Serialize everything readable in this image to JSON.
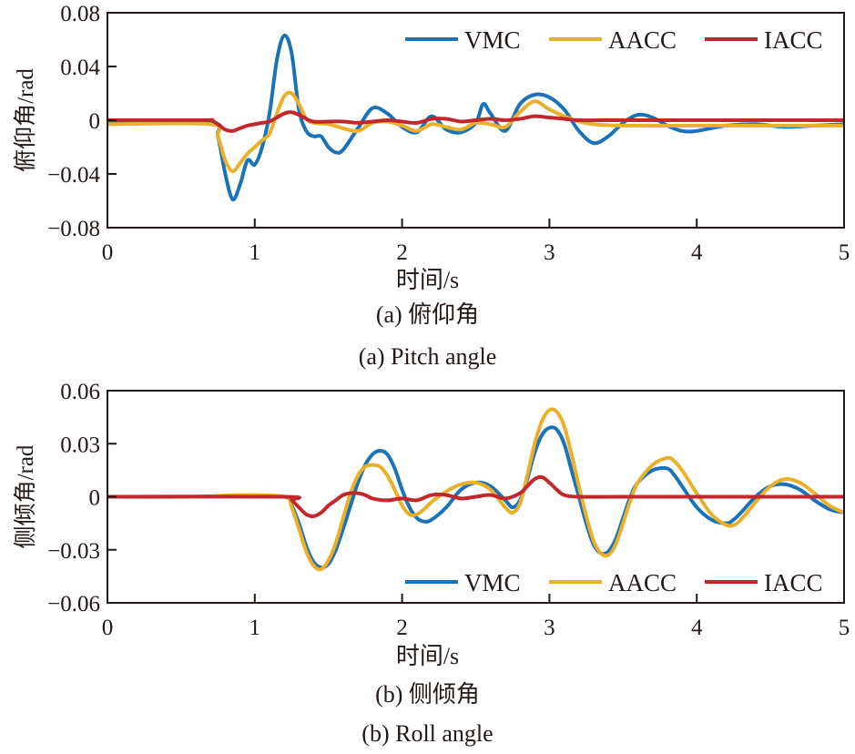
{
  "chart_data": [
    {
      "id": "pitch",
      "type": "line",
      "xlabel": "时间/s",
      "ylabel": "俯仰角/rad",
      "caption_cn": "(a) 俯仰角",
      "caption_en": "(a) Pitch angle",
      "xlim": [
        0,
        5
      ],
      "ylim": [
        -0.08,
        0.08
      ],
      "xticks": [
        0,
        1,
        2,
        3,
        4,
        5
      ],
      "xtick_labels": [
        "0",
        "1",
        "2",
        "3",
        "4",
        "5"
      ],
      "yticks": [
        0.08,
        0.04,
        0,
        -0.04,
        -0.08
      ],
      "ytick_labels": [
        "0.08",
        "0.04",
        "0",
        "−0.04",
        "−0.08"
      ],
      "grid": false,
      "legend_position": "top-right",
      "series": [
        {
          "name": "VMC",
          "color": "#1a72b8",
          "x": [
            0,
            0.7,
            0.75,
            0.8,
            0.85,
            0.9,
            0.95,
            1.0,
            1.05,
            1.1,
            1.15,
            1.2,
            1.25,
            1.3,
            1.35,
            1.4,
            1.45,
            1.5,
            1.55,
            1.6,
            1.7,
            1.8,
            1.9,
            2.0,
            2.1,
            2.2,
            2.3,
            2.4,
            2.5,
            2.55,
            2.6,
            2.7,
            2.8,
            2.9,
            3.0,
            3.1,
            3.2,
            3.3,
            3.4,
            3.5,
            3.6,
            3.7,
            3.8,
            3.9,
            4.0,
            4.2,
            4.4,
            4.6,
            4.8,
            5.0
          ],
          "y": [
            -0.002,
            -0.002,
            -0.012,
            -0.04,
            -0.059,
            -0.048,
            -0.03,
            -0.033,
            -0.02,
            0.005,
            0.045,
            0.063,
            0.05,
            0.008,
            -0.008,
            -0.012,
            -0.012,
            -0.02,
            -0.024,
            -0.022,
            -0.006,
            0.009,
            0.005,
            -0.005,
            -0.009,
            0.003,
            -0.007,
            -0.009,
            -0.002,
            0.012,
            0.005,
            -0.008,
            0.012,
            0.019,
            0.017,
            0.008,
            -0.008,
            -0.017,
            -0.012,
            -0.002,
            0.004,
            0.002,
            -0.004,
            -0.008,
            -0.008,
            -0.004,
            -0.003,
            -0.005,
            -0.004,
            -0.003
          ]
        },
        {
          "name": "AACC",
          "color": "#eab02a",
          "x": [
            0,
            0.7,
            0.75,
            0.8,
            0.85,
            0.9,
            0.95,
            1.0,
            1.05,
            1.1,
            1.15,
            1.2,
            1.25,
            1.3,
            1.35,
            1.4,
            1.5,
            1.6,
            1.7,
            1.8,
            1.9,
            2.0,
            2.1,
            2.2,
            2.3,
            2.4,
            2.5,
            2.6,
            2.7,
            2.8,
            2.9,
            3.0,
            3.1,
            3.2,
            3.3,
            3.5,
            4.0,
            4.5,
            5.0
          ],
          "y": [
            -0.003,
            -0.003,
            -0.012,
            -0.03,
            -0.038,
            -0.032,
            -0.025,
            -0.02,
            -0.015,
            -0.01,
            0.005,
            0.018,
            0.02,
            0.012,
            0.001,
            -0.002,
            -0.003,
            -0.006,
            -0.008,
            -0.002,
            -0.001,
            -0.004,
            -0.008,
            -0.003,
            -0.005,
            -0.007,
            -0.002,
            -0.003,
            -0.005,
            0.006,
            0.014,
            0.008,
            0.003,
            -0.001,
            -0.003,
            -0.004,
            -0.004,
            -0.004,
            -0.004
          ]
        },
        {
          "name": "IACC",
          "color": "#c1272d",
          "x": [
            0,
            0.65,
            0.7,
            0.75,
            0.8,
            0.85,
            0.9,
            0.95,
            1.0,
            1.05,
            1.1,
            1.15,
            1.2,
            1.25,
            1.3,
            1.35,
            1.4,
            1.5,
            1.6,
            1.7,
            1.8,
            1.9,
            2.0,
            2.1,
            2.2,
            2.3,
            2.4,
            2.5,
            2.6,
            2.7,
            2.8,
            2.9,
            3.0,
            3.1,
            3.2,
            3.5,
            4.0,
            4.5,
            5.0
          ],
          "y": [
            0,
            0,
            0,
            -0.003,
            -0.007,
            -0.008,
            -0.006,
            -0.004,
            -0.003,
            -0.002,
            -0.001,
            0.002,
            0.005,
            0.006,
            0.004,
            0.001,
            -0.001,
            -0.001,
            -0.001,
            -0.002,
            -0.001,
            0,
            -0.001,
            -0.002,
            0.001,
            0.001,
            -0.001,
            0,
            0.001,
            0,
            0.001,
            0.003,
            0.002,
            0.001,
            0,
            0,
            0,
            0,
            0
          ]
        }
      ]
    },
    {
      "id": "roll",
      "type": "line",
      "xlabel": "时间/s",
      "ylabel": "侧倾角/rad",
      "caption_cn": "(b) 侧倾角",
      "caption_en": "(b)  Roll angle",
      "xlim": [
        0,
        5
      ],
      "ylim": [
        -0.06,
        0.06
      ],
      "xticks": [
        0,
        1,
        2,
        3,
        4,
        5
      ],
      "xtick_labels": [
        "0",
        "1",
        "2",
        "3",
        "4",
        "5"
      ],
      "yticks": [
        0.06,
        0.03,
        0,
        -0.03,
        -0.06
      ],
      "ytick_labels": [
        "0.06",
        "0.03",
        "0",
        "−0.03",
        "−0.06"
      ],
      "grid": false,
      "legend_position": "bottom-right",
      "series": [
        {
          "name": "VMC",
          "color": "#1a72b8",
          "x": [
            0,
            0.6,
            0.9,
            1.2,
            1.25,
            1.3,
            1.35,
            1.4,
            1.45,
            1.5,
            1.55,
            1.6,
            1.65,
            1.7,
            1.75,
            1.8,
            1.85,
            1.9,
            1.95,
            2.0,
            2.05,
            2.1,
            2.15,
            2.2,
            2.3,
            2.4,
            2.5,
            2.6,
            2.7,
            2.75,
            2.8,
            2.85,
            2.9,
            2.95,
            3.0,
            3.05,
            3.1,
            3.15,
            3.2,
            3.25,
            3.3,
            3.35,
            3.4,
            3.45,
            3.5,
            3.55,
            3.6,
            3.7,
            3.8,
            3.85,
            3.9,
            4.0,
            4.1,
            4.2,
            4.25,
            4.3,
            4.4,
            4.5,
            4.6,
            4.7,
            4.8,
            4.9,
            5.0
          ],
          "y": [
            0,
            0,
            0.0005,
            0,
            -0.005,
            -0.015,
            -0.028,
            -0.037,
            -0.04,
            -0.038,
            -0.03,
            -0.018,
            -0.005,
            0.008,
            0.018,
            0.024,
            0.026,
            0.024,
            0.016,
            0.004,
            -0.006,
            -0.012,
            -0.014,
            -0.013,
            -0.006,
            0.004,
            0.008,
            0.006,
            -0.002,
            -0.006,
            -0.002,
            0.01,
            0.025,
            0.035,
            0.039,
            0.038,
            0.03,
            0.015,
            0,
            -0.015,
            -0.027,
            -0.032,
            -0.031,
            -0.024,
            -0.012,
            0,
            0.008,
            0.015,
            0.016,
            0.012,
            0.006,
            -0.006,
            -0.013,
            -0.015,
            -0.013,
            -0.009,
            0,
            0.006,
            0.007,
            0.004,
            -0.002,
            -0.007,
            -0.009
          ]
        },
        {
          "name": "AACC",
          "color": "#eab02a",
          "x": [
            0,
            0.6,
            0.9,
            1.2,
            1.25,
            1.3,
            1.35,
            1.4,
            1.45,
            1.5,
            1.55,
            1.6,
            1.65,
            1.7,
            1.75,
            1.8,
            1.85,
            1.9,
            1.95,
            2.0,
            2.05,
            2.1,
            2.15,
            2.2,
            2.3,
            2.4,
            2.5,
            2.6,
            2.7,
            2.75,
            2.8,
            2.85,
            2.9,
            2.95,
            3.0,
            3.05,
            3.1,
            3.15,
            3.2,
            3.25,
            3.3,
            3.35,
            3.4,
            3.45,
            3.5,
            3.55,
            3.6,
            3.7,
            3.8,
            3.85,
            3.9,
            4.0,
            4.1,
            4.2,
            4.25,
            4.3,
            4.4,
            4.5,
            4.6,
            4.7,
            4.8,
            4.9,
            5.0
          ],
          "y": [
            0,
            0,
            0.001,
            0,
            -0.006,
            -0.018,
            -0.031,
            -0.039,
            -0.041,
            -0.036,
            -0.026,
            -0.012,
            0.002,
            0.012,
            0.017,
            0.018,
            0.017,
            0.012,
            0.004,
            -0.005,
            -0.01,
            -0.01,
            -0.007,
            -0.003,
            0.003,
            0.007,
            0.008,
            0.004,
            -0.006,
            -0.009,
            -0.004,
            0.012,
            0.03,
            0.043,
            0.049,
            0.048,
            0.04,
            0.024,
            0.006,
            -0.011,
            -0.025,
            -0.032,
            -0.033,
            -0.027,
            -0.015,
            -0.002,
            0.008,
            0.018,
            0.022,
            0.02,
            0.015,
            0.002,
            -0.01,
            -0.016,
            -0.016,
            -0.013,
            -0.003,
            0.006,
            0.01,
            0.008,
            0.002,
            -0.005,
            -0.009
          ]
        },
        {
          "name": "IACC",
          "color": "#c1272d",
          "x": [
            0,
            1.2,
            1.25,
            1.3,
            1.35,
            1.4,
            1.45,
            1.5,
            1.55,
            1.6,
            1.65,
            1.7,
            1.75,
            1.8,
            1.9,
            2.0,
            2.1,
            2.2,
            2.3,
            2.4,
            2.5,
            2.6,
            2.7,
            2.8,
            2.85,
            2.9,
            2.95,
            3.0,
            3.05,
            3.1,
            3.2,
            3.5,
            4.0,
            4.5,
            5.0
          ],
          "y": [
            0,
            0,
            -0.002,
            -0.006,
            -0.01,
            -0.011,
            -0.009,
            -0.005,
            -0.002,
            0.001,
            0.002,
            0.002,
            0.001,
            -0.001,
            -0.002,
            -0.001,
            -0.002,
            0.001,
            0.001,
            -0.001,
            0,
            0.001,
            -0.001,
            0.002,
            0.006,
            0.01,
            0.011,
            0.008,
            0.004,
            0.001,
            0,
            0,
            0,
            0,
            0
          ]
        }
      ]
    }
  ]
}
